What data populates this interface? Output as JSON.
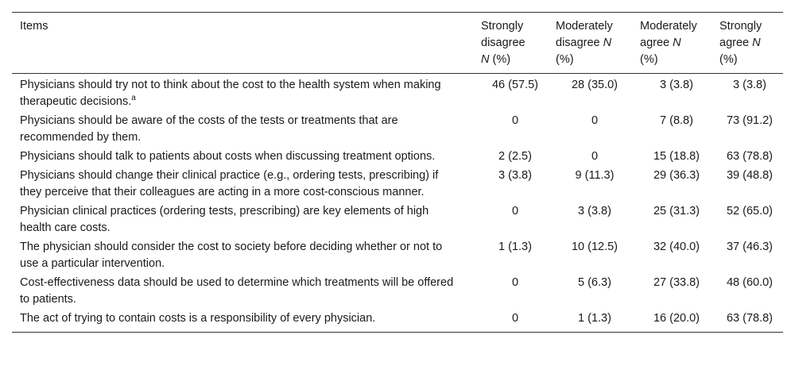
{
  "table": {
    "headers": {
      "items": "Items",
      "strongly_disagree": [
        "Strongly",
        "disagree",
        "N",
        "(%)"
      ],
      "moderately_disagree": [
        "Moderately",
        "disagree",
        "N",
        "(%)"
      ],
      "moderately_agree": [
        "Moderately",
        "agree",
        "N",
        "(%)"
      ],
      "strongly_agree": [
        "Strongly",
        "agree",
        "N",
        "(%)"
      ]
    },
    "rows": [
      {
        "item": "Physicians should try not to think about the cost to the health system when making therapeutic decisions.",
        "footnote": "a",
        "sd": "46 (57.5)",
        "md": "28 (35.0)",
        "ma": "3 (3.8)",
        "sa": "3 (3.8)"
      },
      {
        "item": "Physicians should be aware of the costs of the tests or treatments that are recommended by them.",
        "sd": "0",
        "md": "0",
        "ma": "7 (8.8)",
        "sa": "73 (91.2)"
      },
      {
        "item": "Physicians should talk to patients about costs when discussing treatment options.",
        "sd": "2 (2.5)",
        "md": "0",
        "ma": "15 (18.8)",
        "sa": "63 (78.8)"
      },
      {
        "item": "Physicians should change their clinical practice (e.g., ordering tests, prescribing) if they perceive that their colleagues are acting in a more cost-conscious manner.",
        "sd": "3 (3.8)",
        "md": "9 (11.3)",
        "ma": "29 (36.3)",
        "sa": "39 (48.8)"
      },
      {
        "item": "Physician clinical practices (ordering tests, prescribing) are key elements of high health care costs.",
        "sd": "0",
        "md": "3 (3.8)",
        "ma": "25 (31.3)",
        "sa": "52 (65.0)"
      },
      {
        "item": "The physician should consider the cost to society before deciding whether or not to use a particular intervention.",
        "sd": "1 (1.3)",
        "md": "10 (12.5)",
        "ma": "32 (40.0)",
        "sa": "37 (46.3)"
      },
      {
        "item": "Cost-effectiveness data should be used to determine which treatments will be offered to patients.",
        "sd": "0",
        "md": "5 (6.3)",
        "ma": "27 (33.8)",
        "sa": "48 (60.0)"
      },
      {
        "item": "The act of trying to contain costs is a responsibility of every physician.",
        "sd": "0",
        "md": "1 (1.3)",
        "ma": "16 (20.0)",
        "sa": "63 (78.8)"
      }
    ]
  }
}
